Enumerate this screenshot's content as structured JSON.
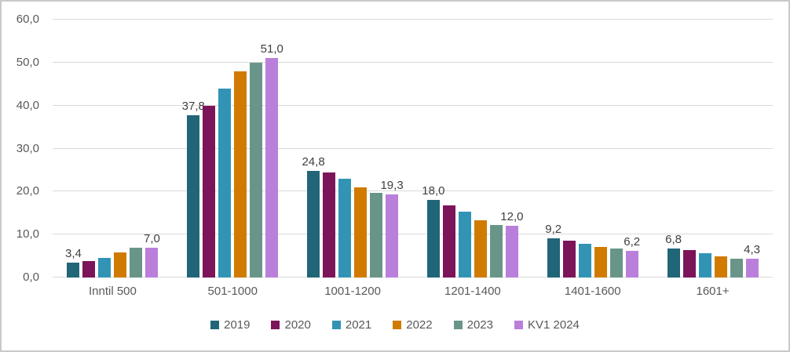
{
  "chart": {
    "background_color": "#FFFFFF",
    "border_color": "#C9C9C9",
    "gridline_color": "#D9D9D9",
    "axis_text_color": "#595959",
    "data_label_color": "#404040"
  },
  "chart_data": {
    "type": "bar",
    "title": "",
    "xlabel": "",
    "ylabel": "",
    "categories": [
      "Inntil 500",
      "501-1000",
      "1001-1200",
      "1201-1400",
      "1401-1600",
      "1601+"
    ],
    "series": [
      {
        "name": "2019",
        "color": "#216678",
        "values": [
          3.4,
          37.8,
          24.8,
          18.0,
          9.2,
          6.8
        ],
        "data_labels": [
          "3,4",
          "37,8",
          "24,8",
          "18,0",
          "9,2",
          "6,8"
        ]
      },
      {
        "name": "2020",
        "color": "#7C1459",
        "values": [
          3.9,
          40.0,
          24.5,
          16.7,
          8.6,
          6.4
        ],
        "data_labels": null
      },
      {
        "name": "2021",
        "color": "#3294B5",
        "values": [
          4.5,
          43.9,
          23.0,
          15.3,
          7.9,
          5.6
        ],
        "data_labels": null
      },
      {
        "name": "2022",
        "color": "#D07B00",
        "values": [
          5.8,
          48.0,
          20.9,
          13.4,
          7.2,
          5.0
        ],
        "data_labels": null
      },
      {
        "name": "2023",
        "color": "#699588",
        "values": [
          7.0,
          50.0,
          19.7,
          12.3,
          6.7,
          4.4
        ],
        "data_labels": null
      },
      {
        "name": "KV1 2024",
        "color": "#BA7FDB",
        "values": [
          7.0,
          51.0,
          19.3,
          12.0,
          6.2,
          4.3
        ],
        "data_labels": [
          "7,0",
          "51,0",
          "19,3",
          "12,0",
          "6,2",
          "4,3"
        ]
      }
    ],
    "ylim": [
      0,
      60
    ],
    "yticks": [
      "0,0",
      "10,0",
      "20,0",
      "30,0",
      "40,0",
      "50,0",
      "60,0"
    ],
    "grid": true,
    "legend_position": "bottom",
    "legend": [
      "2019",
      "2020",
      "2021",
      "2022",
      "2023",
      "KV1 2024"
    ]
  }
}
